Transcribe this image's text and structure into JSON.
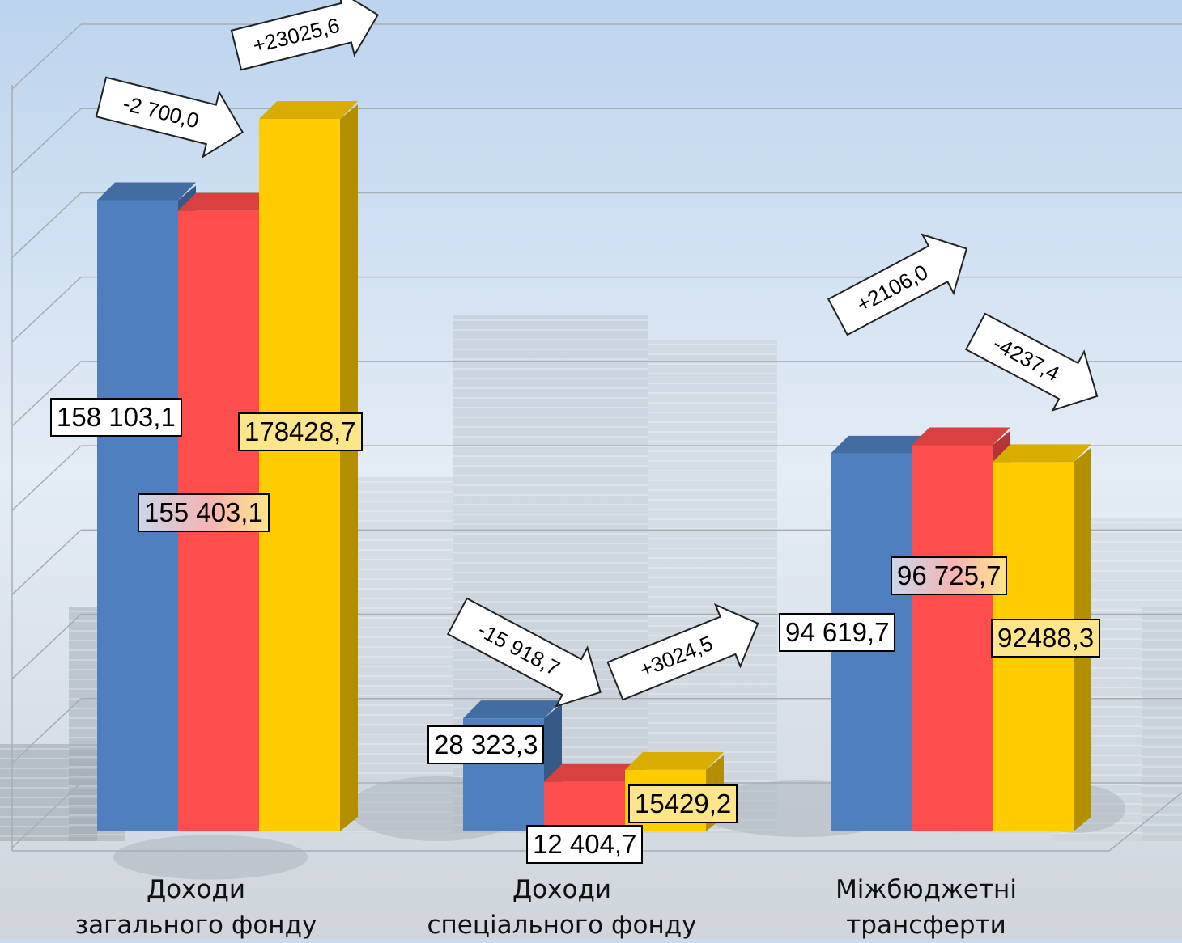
{
  "chart_data": {
    "type": "bar",
    "categories": [
      [
        "Доходи",
        "загального фонду"
      ],
      [
        "Доходи",
        "спеціального фонду"
      ],
      [
        "Міжбюджетні",
        "трансферти"
      ]
    ],
    "series": [
      {
        "values": [
          158103.1,
          28323.3,
          94619.7
        ],
        "color": "#4f7fbf"
      },
      {
        "values": [
          155403.1,
          12404.7,
          96725.7
        ],
        "color": "#ff4d4d"
      },
      {
        "values": [
          178428.7,
          15429.2,
          92488.3
        ],
        "color": "#ffcc00"
      }
    ],
    "value_labels": [
      [
        "158 103,1",
        "28 323,3",
        "94 619,7"
      ],
      [
        "155 403,1",
        "12 404,7",
        "96 725,7"
      ],
      [
        "178428,7",
        "15429,2",
        "92488,3"
      ]
    ],
    "change_arrows": [
      {
        "category": 0,
        "between": [
          1,
          2
        ],
        "text": "-2 700,0"
      },
      {
        "category": 0,
        "between": [
          2,
          3
        ],
        "text": "+23025,6"
      },
      {
        "category": 1,
        "between": [
          1,
          2
        ],
        "text": "-15 918,7"
      },
      {
        "category": 1,
        "between": [
          2,
          3
        ],
        "text": "+3024,5"
      },
      {
        "category": 2,
        "between": [
          1,
          2
        ],
        "text": "+2106,0"
      },
      {
        "category": 2,
        "between": [
          2,
          3
        ],
        "text": "-4237,4"
      }
    ],
    "ylim": [
      0,
      190000
    ],
    "grid": true,
    "legend": "none",
    "style": "3d-bars"
  }
}
